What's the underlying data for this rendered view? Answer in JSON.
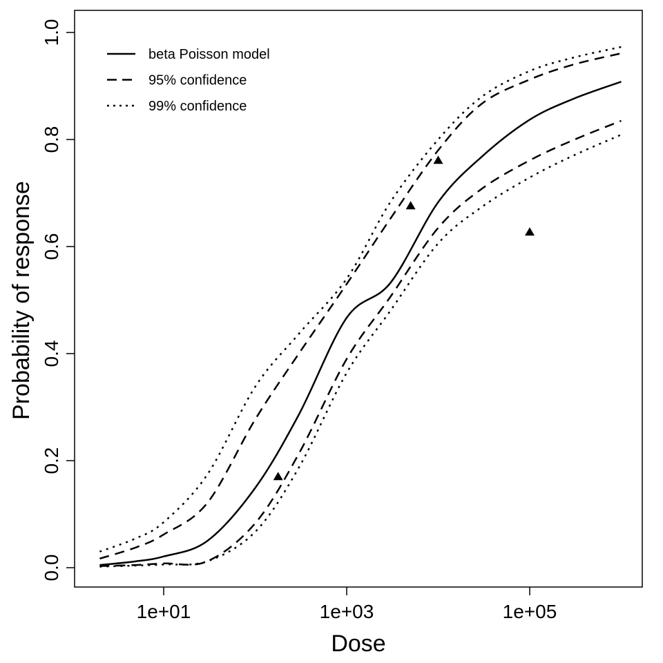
{
  "chart_data": {
    "type": "line",
    "title": "",
    "xlabel": "Dose",
    "ylabel": "Probability of response",
    "x_scale": "log10",
    "xlim": [
      1,
      2000000
    ],
    "ylim": [
      0,
      1
    ],
    "x_ticks": [
      {
        "value": 10,
        "label": "1e+01"
      },
      {
        "value": 1000,
        "label": "1e+03"
      },
      {
        "value": 100000,
        "label": "1e+05"
      }
    ],
    "y_ticks": [
      {
        "value": 0,
        "label": "0.0"
      },
      {
        "value": 0.2,
        "label": "0.2"
      },
      {
        "value": 0.4,
        "label": "0.4"
      },
      {
        "value": 0.6,
        "label": "0.6"
      },
      {
        "value": 0.8,
        "label": "0.8"
      },
      {
        "value": 1.0,
        "label": "1.0"
      }
    ],
    "grid": false,
    "legend_position": "top-left",
    "x": [
      2,
      5,
      10,
      30,
      100,
      300,
      1000,
      3000,
      10000,
      30000,
      100000,
      300000,
      1000000
    ],
    "series": [
      {
        "name": "beta Poisson model",
        "style": "solid",
        "values": [
          0.005,
          0.012,
          0.021,
          0.05,
          0.149,
          0.286,
          0.467,
          0.532,
          0.683,
          0.768,
          0.837,
          0.876,
          0.908
        ]
      },
      {
        "name": "95% confidence",
        "style": "dashed",
        "values": [
          0.017,
          0.038,
          0.062,
          0.121,
          0.277,
          0.4,
          0.53,
          0.652,
          0.78,
          0.867,
          0.912,
          0.94,
          0.961
        ]
      },
      {
        "name": "95% confidence",
        "style": "dashed",
        "in_legend": false,
        "values": [
          0.003,
          0.005,
          0.008,
          0.012,
          0.083,
          0.213,
          0.39,
          0.506,
          0.635,
          0.708,
          0.761,
          0.799,
          0.835
        ]
      },
      {
        "name": "99% confidence",
        "style": "dotted",
        "values": [
          0.03,
          0.055,
          0.085,
          0.174,
          0.338,
          0.437,
          0.54,
          0.683,
          0.8,
          0.88,
          0.928,
          0.953,
          0.973
        ]
      },
      {
        "name": "99% confidence",
        "style": "dotted",
        "in_legend": false,
        "values": [
          0.002,
          0.004,
          0.006,
          0.012,
          0.067,
          0.187,
          0.364,
          0.48,
          0.606,
          0.674,
          0.729,
          0.77,
          0.809
        ]
      }
    ],
    "observed_points": {
      "marker": "filled-triangle",
      "x": [
        178,
        5000,
        10000,
        100000
      ],
      "y": [
        0.17,
        0.676,
        0.761,
        0.627
      ]
    },
    "legend": [
      {
        "label": "beta Poisson model",
        "style": "solid"
      },
      {
        "label": "95% confidence",
        "style": "dashed"
      },
      {
        "label": "99% confidence",
        "style": "dotted"
      }
    ],
    "colors": {
      "line": "#000000",
      "background": "#ffffff"
    }
  }
}
